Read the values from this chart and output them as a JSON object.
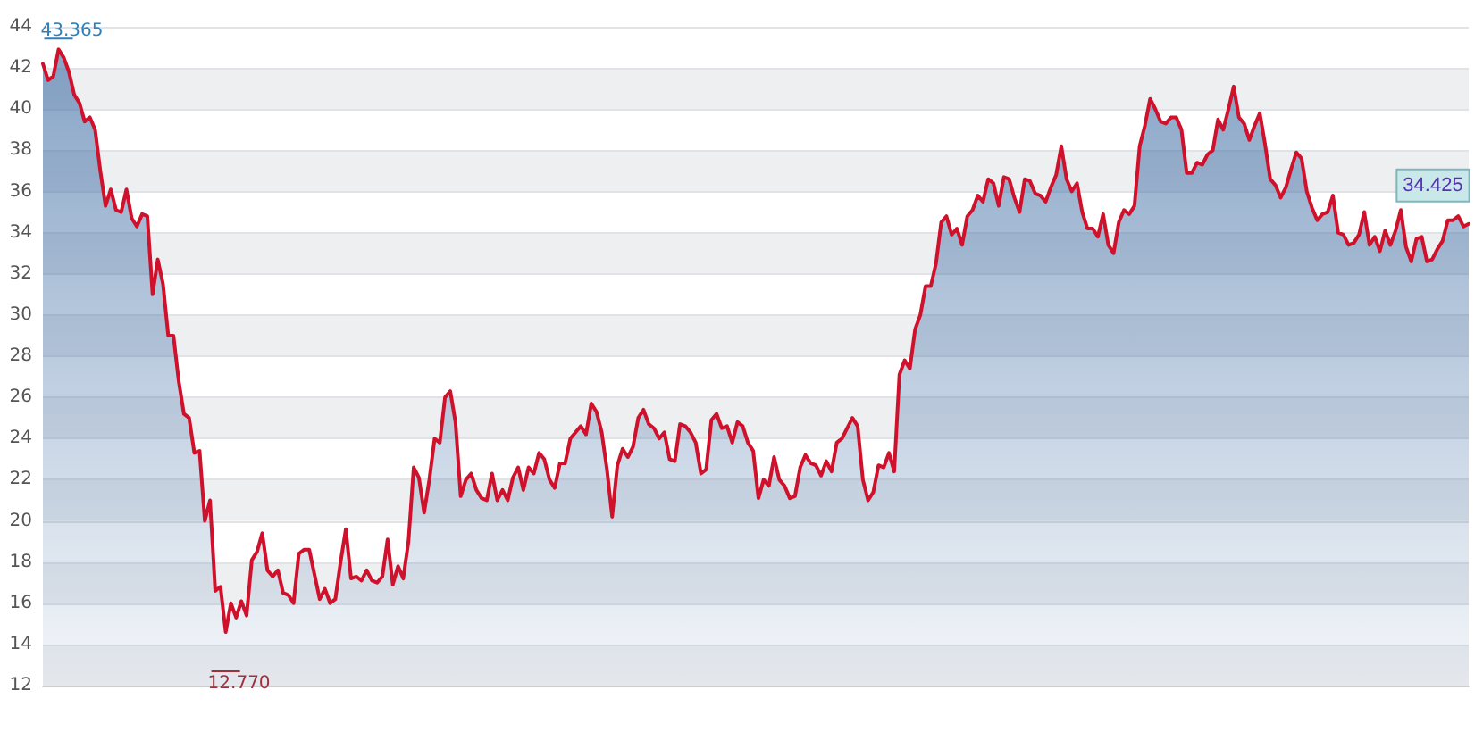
{
  "chart_data": {
    "type": "area",
    "categories": [
      null,
      null,
      null,
      null,
      null,
      null,
      null,
      null,
      null,
      null,
      null,
      null,
      null,
      null,
      null,
      null,
      null,
      null,
      null,
      null,
      null,
      null,
      null,
      null,
      null,
      null,
      null,
      null,
      null,
      null,
      null,
      null,
      null,
      null,
      null,
      null,
      null,
      null,
      null,
      null,
      null,
      null,
      null,
      null,
      null,
      null,
      null,
      null,
      null,
      null,
      null,
      null,
      null,
      null,
      null,
      null,
      null,
      null,
      null,
      null,
      null,
      null,
      null,
      null,
      null,
      null,
      null,
      null,
      null,
      null,
      null,
      null,
      null,
      null,
      null,
      null,
      null,
      null,
      null,
      null,
      null,
      null,
      null,
      null,
      null,
      null,
      null,
      null,
      null,
      null,
      null,
      null,
      null,
      null,
      null,
      null,
      null,
      null,
      null,
      null,
      null,
      null,
      null,
      null,
      null,
      null,
      null,
      null,
      null,
      null,
      null,
      null,
      null,
      null,
      null,
      null,
      null,
      null,
      null,
      null,
      null,
      null,
      null,
      null,
      null,
      null,
      null,
      null,
      null,
      null,
      null,
      null,
      null,
      null,
      null,
      null,
      null,
      null,
      null,
      null,
      null,
      null,
      null,
      null,
      null,
      null,
      null,
      null,
      null,
      null,
      null,
      null,
      null,
      null,
      null,
      null,
      null,
      null,
      null,
      null,
      null,
      null,
      null,
      null,
      null,
      null,
      null,
      null,
      null,
      null,
      null,
      null,
      null,
      null,
      null,
      null,
      null,
      null,
      null,
      null,
      null,
      null,
      null,
      null,
      null,
      null,
      null,
      null,
      null,
      null,
      null,
      null,
      null,
      null,
      null,
      null,
      null,
      null,
      null,
      null,
      null,
      null,
      null,
      null,
      null,
      null,
      null,
      null,
      null,
      null,
      null,
      null,
      null,
      null,
      null,
      null,
      null,
      null,
      null,
      null,
      null,
      null,
      null,
      null,
      null,
      null,
      null,
      null,
      null,
      null,
      null,
      null,
      null,
      null,
      null,
      null,
      null,
      null,
      null,
      null,
      null,
      null,
      null,
      null,
      null,
      null,
      null,
      null,
      null,
      null,
      null,
      null,
      null,
      null,
      null,
      null,
      null,
      null,
      null,
      null,
      null,
      null,
      null,
      null,
      null,
      null,
      null,
      null,
      null,
      null,
      null,
      null,
      null,
      null
    ],
    "series": [
      {
        "color": "#d0112b",
        "values": [
          42.2,
          41.4,
          41.6,
          42.9,
          42.5,
          41.8,
          40.7,
          40.3,
          39.4,
          39.6,
          39.0,
          37.0,
          35.3,
          36.1,
          35.1,
          35.0,
          36.1,
          34.7,
          34.3,
          34.9,
          34.8,
          31.0,
          32.7,
          31.5,
          29.0,
          29.0,
          26.8,
          25.2,
          25.0,
          23.3,
          23.4,
          20.0,
          21.0,
          16.6,
          16.8,
          14.6,
          16.0,
          15.3,
          16.1,
          15.4,
          18.1,
          18.5,
          19.4,
          17.6,
          17.3,
          17.6,
          16.5,
          16.4,
          16.0,
          18.4,
          18.6,
          18.6,
          17.4,
          16.2,
          16.7,
          16.0,
          16.2,
          18.0,
          19.6,
          17.2,
          17.3,
          17.1,
          17.6,
          17.1,
          17.0,
          17.3,
          19.1,
          16.9,
          17.8,
          17.2,
          19.0,
          22.6,
          22.1,
          20.4,
          22.0,
          24.0,
          23.8,
          26.0,
          26.3,
          24.8,
          21.2,
          22.0,
          22.3,
          21.5,
          21.1,
          21.0,
          22.3,
          21.0,
          21.5,
          21.0,
          22.1,
          22.6,
          21.5,
          22.6,
          22.3,
          23.3,
          23.0,
          22.0,
          21.6,
          22.8,
          22.8,
          24.0,
          24.3,
          24.6,
          24.2,
          25.7,
          25.3,
          24.3,
          22.5,
          20.2,
          22.7,
          23.5,
          23.1,
          23.6,
          25.0,
          25.4,
          24.7,
          24.5,
          24.0,
          24.3,
          23.0,
          22.9,
          24.7,
          24.6,
          24.3,
          23.8,
          22.3,
          22.5,
          24.9,
          25.2,
          24.5,
          24.6,
          23.8,
          24.8,
          24.6,
          23.8,
          23.4,
          21.1,
          22.0,
          21.7,
          23.1,
          22.0,
          21.7,
          21.1,
          21.2,
          22.6,
          23.2,
          22.8,
          22.7,
          22.2,
          22.9,
          22.4,
          23.8,
          24.0,
          24.5,
          25.0,
          24.6,
          22.0,
          21.0,
          21.4,
          22.7,
          22.6,
          23.3,
          22.4,
          27.1,
          27.8,
          27.4,
          29.3,
          30.0,
          31.4,
          31.4,
          32.5,
          34.5,
          34.8,
          33.9,
          34.2,
          33.4,
          34.8,
          35.1,
          35.8,
          35.5,
          36.6,
          36.4,
          35.3,
          36.7,
          36.6,
          35.7,
          35.0,
          36.6,
          36.5,
          35.9,
          35.8,
          35.5,
          36.2,
          36.8,
          38.2,
          36.6,
          36.0,
          36.4,
          35.0,
          34.2,
          34.2,
          33.8,
          34.9,
          33.4,
          33.0,
          34.5,
          35.1,
          34.9,
          35.3,
          38.2,
          39.2,
          40.5,
          40.0,
          39.4,
          39.3,
          39.6,
          39.6,
          39.0,
          36.9,
          36.9,
          37.4,
          37.3,
          37.8,
          38.0,
          39.5,
          39.0,
          40.0,
          41.1,
          39.6,
          39.3,
          38.5,
          39.2,
          39.8,
          38.3,
          36.6,
          36.3,
          35.7,
          36.2,
          37.1,
          37.9,
          37.6,
          36.0,
          35.2,
          34.6,
          34.9,
          35.0,
          35.8,
          34.0,
          33.9,
          33.4,
          33.5,
          33.9,
          35.0,
          33.4,
          33.8,
          33.1,
          34.1,
          33.4,
          34.1,
          35.1,
          33.3,
          32.6,
          33.7,
          33.8,
          32.6,
          32.7,
          33.2,
          33.6,
          34.6,
          34.6,
          34.8,
          34.3,
          34.425
        ],
        "value_labels": [
          null,
          null,
          null,
          null,
          null,
          null,
          null,
          null,
          null,
          null,
          null,
          null,
          null,
          null,
          null,
          null,
          null,
          null,
          null,
          null,
          null,
          null,
          null,
          null,
          null,
          null,
          null,
          null,
          null,
          null,
          null,
          null,
          null,
          null,
          null,
          null,
          null,
          null,
          null,
          null,
          null,
          null,
          null,
          null,
          null,
          null,
          null,
          null,
          null,
          null,
          null,
          null,
          null,
          null,
          null,
          null,
          null,
          null,
          null,
          null,
          null,
          null,
          null,
          null,
          null,
          null,
          null,
          null,
          null,
          null,
          null,
          null,
          null,
          null,
          null,
          null,
          null,
          null,
          null,
          null,
          null,
          null,
          null,
          null,
          null,
          null,
          null,
          null,
          null,
          null,
          null,
          null,
          null,
          null,
          null,
          null,
          null,
          null,
          null,
          null,
          null,
          null,
          null,
          null,
          null,
          null,
          null,
          null,
          null,
          null,
          null,
          null,
          null,
          null,
          null,
          null,
          null,
          null,
          null,
          null,
          null,
          null,
          null,
          null,
          null,
          null,
          null,
          null,
          null,
          null,
          null,
          null,
          null,
          null,
          null,
          null,
          null,
          null,
          null,
          null,
          null,
          null,
          null,
          null,
          null,
          null,
          null,
          null,
          null,
          null,
          null,
          null,
          null,
          null,
          null,
          null,
          null,
          null,
          null,
          null,
          null,
          null,
          null,
          null,
          null,
          null,
          null,
          null,
          null,
          null,
          null,
          null,
          null,
          null,
          null,
          null,
          null,
          null,
          null,
          null,
          null,
          null,
          null,
          null,
          null,
          null,
          null,
          null,
          null,
          null,
          null,
          null,
          null,
          null,
          null,
          null,
          null,
          null,
          null,
          null,
          null,
          null,
          null,
          null,
          null,
          null,
          null,
          null,
          null,
          null,
          null,
          null,
          null,
          null,
          null,
          null,
          null,
          null,
          null,
          null,
          null,
          null,
          null,
          null,
          null,
          null,
          null,
          null,
          null,
          null,
          null,
          null,
          null,
          null,
          null,
          null,
          null,
          null,
          null,
          null,
          null,
          null,
          null,
          null,
          null,
          null,
          null,
          null,
          null,
          null,
          null,
          null,
          null,
          null,
          null,
          null,
          null,
          null,
          null,
          null,
          null,
          null,
          null,
          null,
          null,
          null,
          null,
          null,
          null,
          null,
          null,
          null,
          null,
          "34.425"
        ]
      }
    ],
    "annotations": [
      "43.365",
      "12.770"
    ],
    "ylim": [
      12,
      44
    ],
    "yticks": [
      12,
      14,
      16,
      18,
      20,
      22,
      24,
      26,
      28,
      30,
      32,
      34,
      36,
      38,
      40,
      42,
      44
    ],
    "grid": "y",
    "tick_labels": "y",
    "line_style": "solid"
  }
}
